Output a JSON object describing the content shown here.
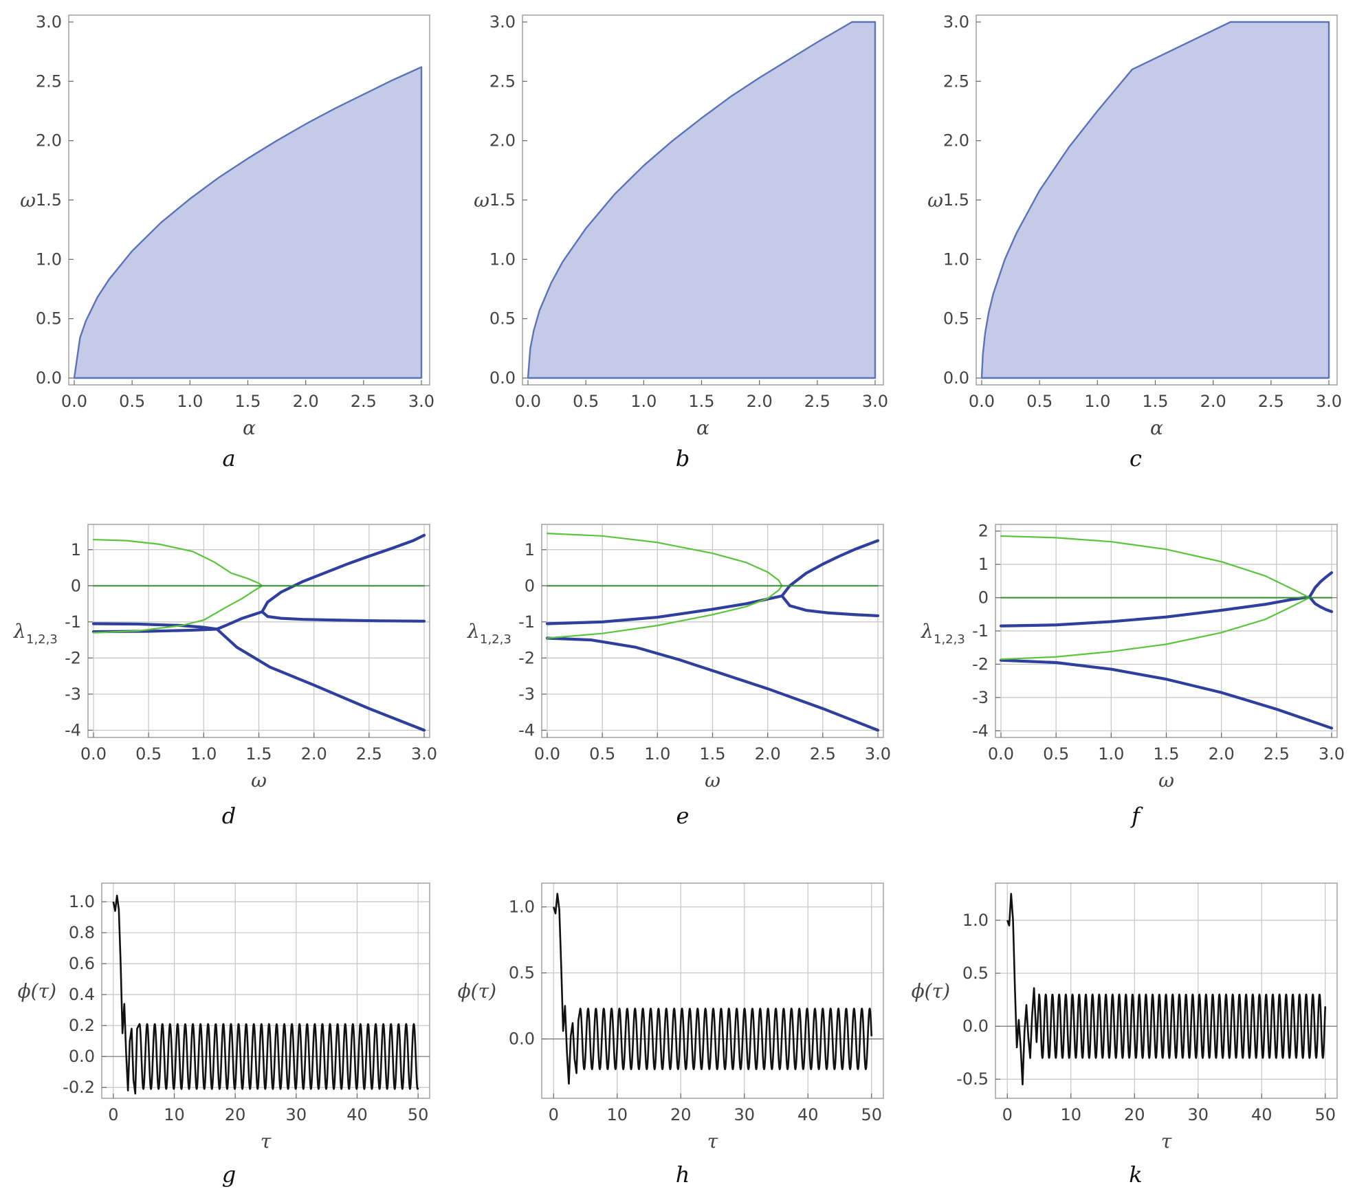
{
  "colors": {
    "region_fill": "#c5cae9",
    "region_edge": "#5b74b7",
    "blue_curve": "#2e3f9e",
    "green_curve": "#5ac43c",
    "dark_green_curve": "#2e8b2e",
    "time_series": "#111111",
    "grid": "#c4c4c4",
    "frame": "#9a9a9a"
  },
  "chart_data": [
    {
      "id": "a",
      "type": "area",
      "caption": "a",
      "xlabel": "α",
      "ylabel": "ω",
      "xlim": [
        0,
        3
      ],
      "ylim": [
        0,
        3
      ],
      "xticks": [
        "0.0",
        "0.5",
        "1.0",
        "1.5",
        "2.0",
        "2.5",
        "3.0"
      ],
      "yticks": [
        "0.0",
        "0.5",
        "1.0",
        "1.5",
        "2.0",
        "2.5",
        "3.0"
      ],
      "grid": false,
      "boundary": {
        "x": [
          0,
          0.05,
          0.1,
          0.2,
          0.3,
          0.5,
          0.75,
          1.0,
          1.25,
          1.5,
          1.75,
          2.0,
          2.25,
          2.5,
          2.75,
          3.0
        ],
        "y": [
          0,
          0.34,
          0.48,
          0.68,
          0.83,
          1.07,
          1.31,
          1.51,
          1.69,
          1.85,
          2.0,
          2.14,
          2.27,
          2.39,
          2.51,
          2.62
        ]
      }
    },
    {
      "id": "b",
      "type": "area",
      "caption": "b",
      "xlabel": "α",
      "ylabel": "ω",
      "xlim": [
        0,
        3
      ],
      "ylim": [
        0,
        3
      ],
      "xticks": [
        "0.0",
        "0.5",
        "1.0",
        "1.5",
        "2.0",
        "2.5",
        "3.0"
      ],
      "yticks": [
        "0.0",
        "0.5",
        "1.0",
        "1.5",
        "2.0",
        "2.5",
        "3.0"
      ],
      "grid": false,
      "boundary": {
        "x": [
          0,
          0.02,
          0.05,
          0.1,
          0.2,
          0.3,
          0.5,
          0.75,
          1.0,
          1.25,
          1.5,
          1.75,
          2.0,
          2.25,
          2.5,
          2.8,
          3.0
        ],
        "y": [
          0,
          0.25,
          0.4,
          0.57,
          0.8,
          0.98,
          1.26,
          1.55,
          1.79,
          2.0,
          2.19,
          2.37,
          2.53,
          2.68,
          2.83,
          3.0,
          3.0
        ]
      }
    },
    {
      "id": "c",
      "type": "area",
      "caption": "c",
      "xlabel": "α",
      "ylabel": "ω",
      "xlim": [
        0,
        3
      ],
      "ylim": [
        0,
        3
      ],
      "xticks": [
        "0.0",
        "0.5",
        "1.0",
        "1.5",
        "2.0",
        "2.5",
        "3.0"
      ],
      "yticks": [
        "0.0",
        "0.5",
        "1.0",
        "1.5",
        "2.0",
        "2.5",
        "3.0"
      ],
      "grid": false,
      "boundary": {
        "x": [
          0,
          0.01,
          0.03,
          0.06,
          0.1,
          0.2,
          0.3,
          0.5,
          0.75,
          1.0,
          1.3,
          2.15,
          3.0
        ],
        "y": [
          0,
          0.2,
          0.38,
          0.55,
          0.71,
          1.0,
          1.22,
          1.58,
          1.94,
          2.25,
          2.6,
          3.0,
          3.0
        ]
      }
    },
    {
      "id": "d",
      "type": "line",
      "caption": "d",
      "xlabel": "ω",
      "ylabel": "λ",
      "ylabel_sub": "1,2,3",
      "xlim": [
        0,
        3
      ],
      "ylim": [
        -4.2,
        1.7
      ],
      "xticks": [
        "0.0",
        "0.5",
        "1.0",
        "1.5",
        "2.0",
        "2.5",
        "3.0"
      ],
      "yticks": [
        "-4",
        "-3",
        "-2",
        "-1",
        "0",
        "1"
      ],
      "grid": true,
      "series": [
        {
          "name": "blue-upper",
          "style": "blue",
          "x": [
            1.53,
            1.58,
            1.7,
            1.9,
            2.1,
            2.3,
            2.5,
            2.7,
            2.9,
            3.0
          ],
          "y": [
            -0.72,
            -0.45,
            -0.18,
            0.12,
            0.36,
            0.6,
            0.82,
            1.03,
            1.25,
            1.4
          ]
        },
        {
          "name": "blue-lower-branch",
          "style": "blue",
          "x": [
            1.53,
            1.58,
            1.7,
            1.9,
            2.2,
            2.6,
            3.0
          ],
          "y": [
            -0.72,
            -0.85,
            -0.9,
            -0.93,
            -0.95,
            -0.97,
            -0.98
          ]
        },
        {
          "name": "blue-mid",
          "style": "blue",
          "x": [
            0.0,
            0.4,
            0.8,
            1.0,
            1.12,
            1.2,
            1.35,
            1.45,
            1.53
          ],
          "y": [
            -1.05,
            -1.06,
            -1.1,
            -1.15,
            -1.2,
            -1.1,
            -0.9,
            -0.8,
            -0.72
          ]
        },
        {
          "name": "blue-low",
          "style": "blue",
          "x": [
            0.0,
            0.5,
            0.9,
            1.12,
            1.3,
            1.6,
            2.0,
            2.5,
            3.0
          ],
          "y": [
            -1.27,
            -1.26,
            -1.23,
            -1.2,
            -1.7,
            -2.25,
            -2.75,
            -3.4,
            -4.0
          ]
        },
        {
          "name": "green-upper",
          "style": "green",
          "x": [
            0.0,
            0.3,
            0.6,
            0.9,
            1.1,
            1.25,
            1.4,
            1.5,
            1.53
          ],
          "y": [
            1.28,
            1.25,
            1.15,
            0.95,
            0.65,
            0.35,
            0.2,
            0.07,
            0.0
          ]
        },
        {
          "name": "green-lower",
          "style": "green",
          "x": [
            0.0,
            0.4,
            0.8,
            1.0,
            1.2,
            1.35,
            1.45,
            1.53
          ],
          "y": [
            -1.3,
            -1.25,
            -1.1,
            -0.95,
            -0.6,
            -0.35,
            -0.15,
            0.0
          ]
        },
        {
          "name": "green-zero",
          "style": "dark_green",
          "x": [
            0.0,
            3.0
          ],
          "y": [
            0.0,
            0.0
          ]
        }
      ]
    },
    {
      "id": "e",
      "type": "line",
      "caption": "e",
      "xlabel": "ω",
      "ylabel": "λ",
      "ylabel_sub": "1,2,3",
      "xlim": [
        0,
        3
      ],
      "ylim": [
        -4.2,
        1.7
      ],
      "xticks": [
        "0.0",
        "0.5",
        "1.0",
        "1.5",
        "2.0",
        "2.5",
        "3.0"
      ],
      "yticks": [
        "-4",
        "-3",
        "-2",
        "-1",
        "0",
        "1"
      ],
      "grid": true,
      "series": [
        {
          "name": "blue-upper",
          "style": "blue",
          "x": [
            2.13,
            2.2,
            2.35,
            2.5,
            2.65,
            2.8,
            3.0
          ],
          "y": [
            -0.28,
            0.0,
            0.35,
            0.6,
            0.82,
            1.02,
            1.25
          ]
        },
        {
          "name": "blue-lower-branch",
          "style": "blue",
          "x": [
            2.13,
            2.2,
            2.35,
            2.55,
            2.8,
            3.0
          ],
          "y": [
            -0.28,
            -0.55,
            -0.68,
            -0.75,
            -0.8,
            -0.83
          ]
        },
        {
          "name": "blue-mid",
          "style": "blue",
          "x": [
            0.0,
            0.5,
            1.0,
            1.5,
            1.8,
            2.13
          ],
          "y": [
            -1.05,
            -1.0,
            -0.87,
            -0.65,
            -0.5,
            -0.28
          ]
        },
        {
          "name": "blue-low",
          "style": "blue",
          "x": [
            0.0,
            0.4,
            0.8,
            1.2,
            1.6,
            2.0,
            2.5,
            3.0
          ],
          "y": [
            -1.45,
            -1.5,
            -1.7,
            -2.05,
            -2.45,
            -2.85,
            -3.4,
            -4.0
          ]
        },
        {
          "name": "green-upper",
          "style": "green",
          "x": [
            0.0,
            0.5,
            1.0,
            1.5,
            1.8,
            2.0,
            2.1,
            2.13
          ],
          "y": [
            1.45,
            1.38,
            1.2,
            0.9,
            0.65,
            0.38,
            0.15,
            0.0
          ]
        },
        {
          "name": "green-lower",
          "style": "green",
          "x": [
            0.0,
            0.5,
            1.0,
            1.5,
            1.8,
            2.0,
            2.1,
            2.13
          ],
          "y": [
            -1.45,
            -1.32,
            -1.1,
            -0.8,
            -0.58,
            -0.35,
            -0.12,
            0.0
          ]
        },
        {
          "name": "green-zero",
          "style": "dark_green",
          "x": [
            0.0,
            3.0
          ],
          "y": [
            0.0,
            0.0
          ]
        }
      ]
    },
    {
      "id": "f",
      "type": "line",
      "caption": "f",
      "xlabel": "ω",
      "ylabel": "λ",
      "ylabel_sub": "1,2,3",
      "xlim": [
        0,
        3
      ],
      "ylim": [
        -4.2,
        2.2
      ],
      "xticks": [
        "0.0",
        "0.5",
        "1.0",
        "1.5",
        "2.0",
        "2.5",
        "3.0"
      ],
      "yticks": [
        "-4",
        "-3",
        "-2",
        "-1",
        "0",
        "1",
        "2"
      ],
      "grid": true,
      "series": [
        {
          "name": "blue-upper",
          "style": "blue",
          "x": [
            2.8,
            2.85,
            2.9,
            2.95,
            3.0
          ],
          "y": [
            0.02,
            0.3,
            0.48,
            0.62,
            0.75
          ]
        },
        {
          "name": "blue-lower-branch",
          "style": "blue",
          "x": [
            2.8,
            2.85,
            2.9,
            2.95,
            3.0
          ],
          "y": [
            0.02,
            -0.18,
            -0.28,
            -0.36,
            -0.42
          ]
        },
        {
          "name": "blue-mid",
          "style": "blue",
          "x": [
            0.0,
            0.5,
            1.0,
            1.5,
            2.0,
            2.4,
            2.65,
            2.8
          ],
          "y": [
            -0.85,
            -0.82,
            -0.72,
            -0.58,
            -0.38,
            -0.2,
            -0.05,
            0.02
          ]
        },
        {
          "name": "blue-low",
          "style": "blue",
          "x": [
            0.0,
            0.5,
            1.0,
            1.5,
            2.0,
            2.5,
            3.0
          ],
          "y": [
            -1.88,
            -1.95,
            -2.15,
            -2.45,
            -2.85,
            -3.35,
            -3.92
          ]
        },
        {
          "name": "green-upper",
          "style": "green",
          "x": [
            0.0,
            0.5,
            1.0,
            1.5,
            2.0,
            2.4,
            2.65,
            2.8
          ],
          "y": [
            1.85,
            1.8,
            1.68,
            1.45,
            1.08,
            0.65,
            0.25,
            0.0
          ]
        },
        {
          "name": "green-lower",
          "style": "green",
          "x": [
            0.0,
            0.5,
            1.0,
            1.5,
            2.0,
            2.4,
            2.65,
            2.8
          ],
          "y": [
            -1.85,
            -1.78,
            -1.62,
            -1.4,
            -1.05,
            -0.65,
            -0.25,
            0.0
          ]
        },
        {
          "name": "green-zero",
          "style": "dark_green",
          "x": [
            0.0,
            3.0
          ],
          "y": [
            0.0,
            0.0
          ]
        }
      ]
    },
    {
      "id": "g",
      "type": "line",
      "caption": "g",
      "xlabel": "τ",
      "ylabel": "ϕ(τ)",
      "xlim": [
        -1,
        51
      ],
      "ylim": [
        -0.27,
        1.12
      ],
      "xticks": [
        "0",
        "10",
        "20",
        "30",
        "40",
        "50"
      ],
      "yticks": [
        "-0.2",
        "0.0",
        "0.2",
        "0.4",
        "0.6",
        "0.8",
        "1.0"
      ],
      "ytick_values": [
        -0.2,
        0.0,
        0.2,
        0.4,
        0.6,
        0.8,
        1.0
      ],
      "xtick_values": [
        0,
        10,
        20,
        30,
        40,
        50
      ],
      "grid": true,
      "oscillation": {
        "amplitude": 0.21,
        "period": 1.25,
        "start": 4.3
      },
      "transient": {
        "x": [
          0,
          0.3,
          0.6,
          0.9,
          1.2,
          1.5,
          1.8,
          2.1,
          2.4,
          2.7,
          3.0,
          3.3,
          3.6,
          3.9,
          4.3
        ],
        "y": [
          1.0,
          0.94,
          1.04,
          0.95,
          0.6,
          0.15,
          0.34,
          0.02,
          -0.22,
          0.1,
          0.18,
          -0.15,
          -0.24,
          0.18,
          0.21
        ]
      }
    },
    {
      "id": "h",
      "type": "line",
      "caption": "h",
      "xlabel": "τ",
      "ylabel": "ϕ(τ)",
      "xlim": [
        -1,
        51
      ],
      "ylim": [
        -0.45,
        1.18
      ],
      "xticks": [
        "0",
        "10",
        "20",
        "30",
        "40",
        "50"
      ],
      "yticks": [
        "0.0",
        "0.5",
        "1.0"
      ],
      "ytick_values": [
        0.0,
        0.5,
        1.0
      ],
      "xtick_values": [
        0,
        10,
        20,
        30,
        40,
        50
      ],
      "grid": true,
      "oscillation": {
        "amplitude": 0.23,
        "period": 1.23,
        "start": 4.2
      },
      "transient": {
        "x": [
          0,
          0.3,
          0.6,
          0.9,
          1.2,
          1.5,
          1.8,
          2.1,
          2.4,
          2.7,
          3.0,
          3.3,
          3.6,
          3.9,
          4.2
        ],
        "y": [
          1.0,
          0.95,
          1.1,
          0.98,
          0.55,
          0.06,
          0.25,
          -0.1,
          -0.34,
          0.02,
          0.12,
          -0.15,
          -0.26,
          0.14,
          0.23
        ]
      }
    },
    {
      "id": "k",
      "type": "line",
      "caption": "k",
      "xlabel": "τ",
      "ylabel": "ϕ(τ)",
      "xlim": [
        -1,
        51
      ],
      "ylim": [
        -0.68,
        1.35
      ],
      "xticks": [
        "0",
        "10",
        "20",
        "30",
        "40",
        "50"
      ],
      "yticks": [
        "-0.5",
        "0.0",
        "0.5",
        "1.0"
      ],
      "ytick_values": [
        -0.5,
        0.0,
        0.5,
        1.0
      ],
      "xtick_values": [
        0,
        10,
        20,
        30,
        40,
        50
      ],
      "grid": true,
      "oscillation": {
        "amplitude": 0.3,
        "period": 1.05,
        "start": 5.0
      },
      "transient": {
        "x": [
          0,
          0.3,
          0.6,
          0.9,
          1.2,
          1.5,
          1.8,
          2.1,
          2.4,
          2.7,
          3.0,
          3.3,
          3.6,
          3.9,
          4.2,
          4.6,
          5.0
        ],
        "y": [
          1.0,
          0.95,
          1.25,
          1.0,
          0.35,
          -0.2,
          0.06,
          -0.2,
          -0.55,
          -0.05,
          0.2,
          -0.1,
          -0.3,
          0.1,
          0.36,
          -0.15,
          0.3
        ]
      }
    }
  ]
}
